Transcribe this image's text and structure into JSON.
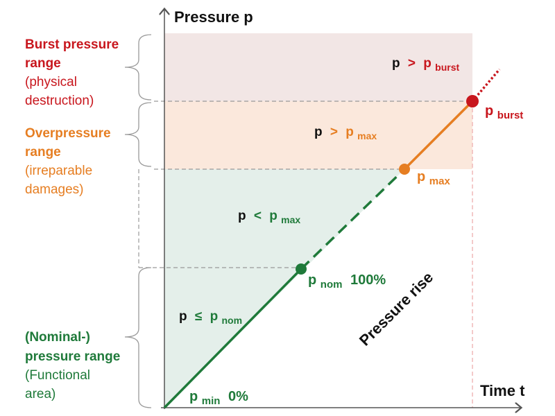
{
  "colors": {
    "burst": "#c8161d",
    "over": "#e67e22",
    "nominal": "#1f7a3a",
    "burst_fill": "#f2e6e5",
    "over_fill": "#fbe8dc",
    "nominal_fill": "#e4efea"
  },
  "axes": {
    "y_title": "Pressure p",
    "x_title": "Time t"
  },
  "ranges": {
    "burst": {
      "line1": "Burst pressure",
      "line2": "range",
      "line3": "(physical",
      "line4": "destruction)"
    },
    "over": {
      "line1": "Overpressure",
      "line2": "range",
      "line3": "(irreparable",
      "line4": "damages)"
    },
    "nominal": {
      "line1": "(Nominal-)",
      "line2": "pressure range",
      "line3": "(Functional",
      "line4": "area)"
    }
  },
  "conditions": {
    "burst": {
      "p": "p",
      "op": ">",
      "sym": "p",
      "sub": "burst"
    },
    "over": {
      "p": "p",
      "op": ">",
      "sym": "p",
      "sub": "max"
    },
    "below": {
      "p": "p",
      "op": "<",
      "sym": "p",
      "sub": "max"
    },
    "nominal": {
      "p": "p",
      "op": "≤",
      "sym": "p",
      "sub": "nom"
    }
  },
  "markers": {
    "burst": {
      "sym": "p",
      "sub": "burst",
      "value": ""
    },
    "max": {
      "sym": "p",
      "sub": "max",
      "value": ""
    },
    "nom": {
      "sym": "p",
      "sub": "nom",
      "value": "100%"
    },
    "min": {
      "sym": "p",
      "sub": "min",
      "value": "0%"
    }
  },
  "rise_label": "Pressure rise"
}
